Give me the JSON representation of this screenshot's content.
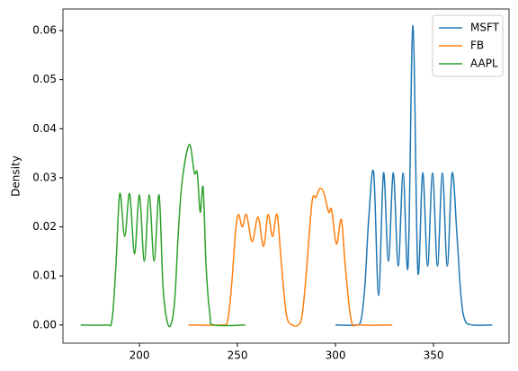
{
  "chart_data": {
    "type": "line",
    "ylabel": "Density",
    "xlim": [
      161,
      388.5
    ],
    "ylim": [
      -0.0037,
      0.0644
    ],
    "xticks": [
      200,
      250,
      300,
      350
    ],
    "yticks": [
      {
        "value": 0,
        "label": "0.00"
      },
      {
        "value": 0.01,
        "label": "0.01"
      },
      {
        "value": 0.02,
        "label": "0.02"
      },
      {
        "value": 0.03,
        "label": "0.03"
      },
      {
        "value": 0.04,
        "label": "0.04"
      },
      {
        "value": 0.05,
        "label": "0.05"
      },
      {
        "value": 0.06,
        "label": "0.06"
      }
    ],
    "legend": "upper right",
    "series": [
      {
        "name": "MSFT",
        "color": "#1f77b4",
        "x": [
          300,
          310,
          313,
          315,
          317,
          319.5,
          322,
          324.5,
          327,
          329.5,
          332,
          334.5,
          337,
          339.5,
          342,
          344.5,
          347,
          349.5,
          352,
          354.5,
          357,
          359.5,
          362,
          364,
          366,
          370,
          380
        ],
        "values": [
          0,
          0,
          0.001,
          0.008,
          0.022,
          0.031,
          0.006,
          0.031,
          0.013,
          0.031,
          0.012,
          0.031,
          0.012,
          0.061,
          0.011,
          0.031,
          0.012,
          0.031,
          0.012,
          0.031,
          0.012,
          0.031,
          0.018,
          0.006,
          0.001,
          0,
          0
        ]
      },
      {
        "name": "FB",
        "color": "#ff7f0e",
        "x": [
          225,
          242,
          245,
          247,
          249,
          250.5,
          252.5,
          254.6,
          257.5,
          260.5,
          263.3,
          265.6,
          267.9,
          270.2,
          272.5,
          275,
          278,
          281,
          283,
          285,
          288,
          290,
          292,
          294,
          296.5,
          298,
          300.5,
          303,
          305,
          308,
          312,
          329
        ],
        "values": [
          0,
          0,
          0.001,
          0.008,
          0.019,
          0.0225,
          0.02,
          0.0225,
          0.017,
          0.022,
          0.016,
          0.0225,
          0.018,
          0.0225,
          0.012,
          0.002,
          0,
          0,
          0.002,
          0.01,
          0.025,
          0.026,
          0.0278,
          0.027,
          0.023,
          0.0235,
          0.0165,
          0.0215,
          0.012,
          0.001,
          0,
          0
        ]
      },
      {
        "name": "AAPL",
        "color": "#2ca02c",
        "x": [
          170,
          183,
          186,
          188,
          190,
          192.5,
          195,
          197.5,
          200,
          202.5,
          205,
          207.5,
          210,
          212,
          214,
          216,
          218,
          220,
          222,
          225.5,
          228,
          229.5,
          231,
          232.5,
          234,
          236,
          238,
          254
        ],
        "values": [
          0,
          0,
          0.001,
          0.012,
          0.0268,
          0.018,
          0.0268,
          0.0145,
          0.0265,
          0.013,
          0.0265,
          0.013,
          0.0265,
          0.008,
          0.001,
          0,
          0.005,
          0.02,
          0.03,
          0.0368,
          0.031,
          0.031,
          0.023,
          0.028,
          0.012,
          0.002,
          0,
          0
        ]
      }
    ]
  }
}
